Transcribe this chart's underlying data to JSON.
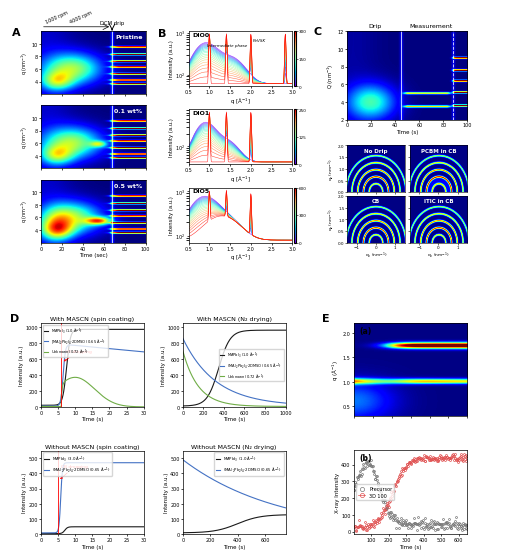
{
  "panel_A_labels": [
    "Pristine",
    "0.1 wt%",
    "0.5 wt%"
  ],
  "panel_B_labels": [
    "DIO0",
    "DIO1",
    "DIO5"
  ],
  "panel_B_colorbars": [
    300,
    250,
    600
  ],
  "panel_C_bottom_labels": [
    "No Drip",
    "PCBM in CB",
    "CB",
    "ITIC in CB"
  ],
  "panel_D_titles": [
    "With MASCN (spin coating)",
    "With MASCN (N₂ drying)",
    "Without MASCN (spin coating)",
    "Without MASCN (N₂ drying)"
  ],
  "panel_E_legend": [
    "Precursor",
    "3D 100"
  ],
  "bg_color": "#ffffff"
}
